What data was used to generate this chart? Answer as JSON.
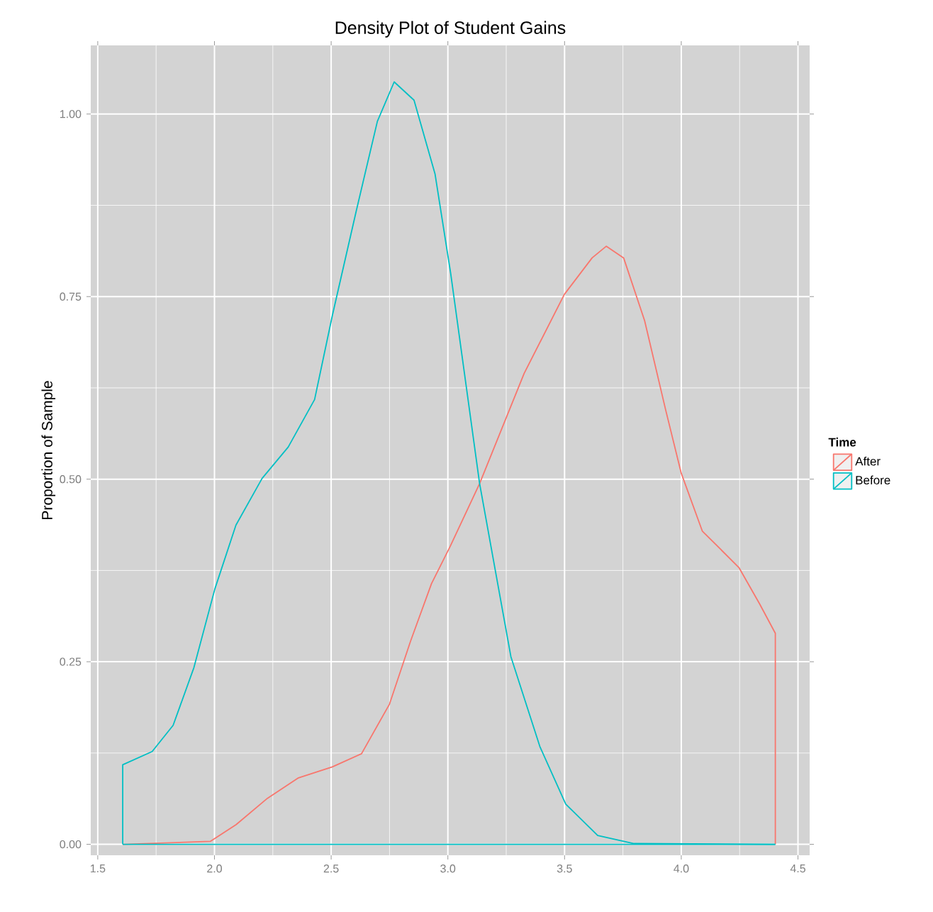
{
  "chart_data": {
    "type": "line",
    "title": "Density Plot of Student Gains",
    "ylabel": "Proportion of Sample",
    "legend_title": "Time",
    "xlim": [
      1.47,
      4.55
    ],
    "ylim": [
      -0.015,
      1.094
    ],
    "xticks": [
      {
        "value": 1.5,
        "label": "1.5"
      },
      {
        "value": 2.0,
        "label": "2.0"
      },
      {
        "value": 2.5,
        "label": "2.5"
      },
      {
        "value": 3.0,
        "label": "3.0"
      },
      {
        "value": 3.5,
        "label": "3.5"
      },
      {
        "value": 4.0,
        "label": "4.0"
      },
      {
        "value": 4.5,
        "label": "4.5"
      }
    ],
    "yticks": [
      {
        "value": 0,
        "label": "0.00"
      },
      {
        "value": 0.25,
        "label": "0.25"
      },
      {
        "value": 0.5,
        "label": "0.50"
      },
      {
        "value": 0.75,
        "label": "0.75"
      },
      {
        "value": 1.0,
        "label": "1.00"
      }
    ],
    "grid": true,
    "legend": "right",
    "line_style": "solid",
    "marker": "none",
    "series": [
      {
        "name": "After",
        "color": "#f8766d",
        "x": [
          1.607,
          1.982,
          2.093,
          2.227,
          2.36,
          2.505,
          2.63,
          2.75,
          2.84,
          2.93,
          3.01,
          3.136,
          3.327,
          3.499,
          3.618,
          3.679,
          3.753,
          3.843,
          3.933,
          4.0,
          4.09,
          4.247,
          4.336,
          4.403,
          4.403
        ],
        "values": [
          0,
          0.004,
          0.027,
          0.063,
          0.091,
          0.106,
          0.124,
          0.192,
          0.278,
          0.357,
          0.408,
          0.494,
          0.645,
          0.753,
          0.803,
          0.819,
          0.803,
          0.717,
          0.595,
          0.508,
          0.429,
          0.379,
          0.329,
          0.289,
          0
        ]
      },
      {
        "name": "Before",
        "color": "#00bfc4",
        "x": [
          1.607,
          1.607,
          1.733,
          1.823,
          1.912,
          2.002,
          2.092,
          2.204,
          2.316,
          2.429,
          2.505,
          2.608,
          2.698,
          2.77,
          2.855,
          2.945,
          3.012,
          3.136,
          3.27,
          3.394,
          3.505,
          3.642,
          3.798,
          4.403
        ],
        "values": [
          0,
          0.109,
          0.127,
          0.163,
          0.242,
          0.35,
          0.437,
          0.501,
          0.544,
          0.609,
          0.724,
          0.868,
          0.99,
          1.044,
          1.019,
          0.918,
          0.782,
          0.494,
          0.257,
          0.134,
          0.055,
          0.012,
          0.001,
          0
        ]
      },
      {
        "color": "#00bfc4",
        "x": [
          1.607,
          4.403
        ],
        "values": [
          0,
          0
        ]
      }
    ]
  }
}
